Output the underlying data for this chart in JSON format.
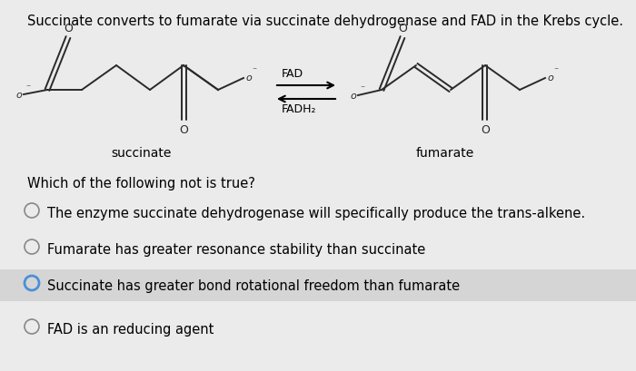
{
  "background_color": "#ebebeb",
  "title_text": "Succinate converts to fumarate via succinate dehydrogenase and FAD in the Krebs cycle.",
  "title_fontsize": 10.5,
  "question_text": "Which of the following not is true?",
  "question_fontsize": 10.5,
  "options": [
    {
      "text": "The enzyme succinate dehydrogenase will specifically produce the trans-alkene.",
      "selected": false,
      "highlighted": false
    },
    {
      "text": "Fumarate has greater resonance stability than succinate",
      "selected": false,
      "highlighted": false
    },
    {
      "text": "Succinate has greater bond rotational freedom than fumarate",
      "selected": true,
      "highlighted": true
    },
    {
      "text": "FAD is an reducing agent",
      "selected": false,
      "highlighted": false
    }
  ],
  "option_fontsize": 10.5,
  "selected_circle_color": "#4a90d9",
  "unselected_circle_color": "#888888",
  "highlight_color": "#d5d5d5",
  "fad_label": "FAD",
  "fadh2_label": "FADH₂",
  "succinate_label": "succinate",
  "fumarate_label": "fumarate",
  "label_fontsize": 10,
  "struct_color": "#2a2a2a"
}
